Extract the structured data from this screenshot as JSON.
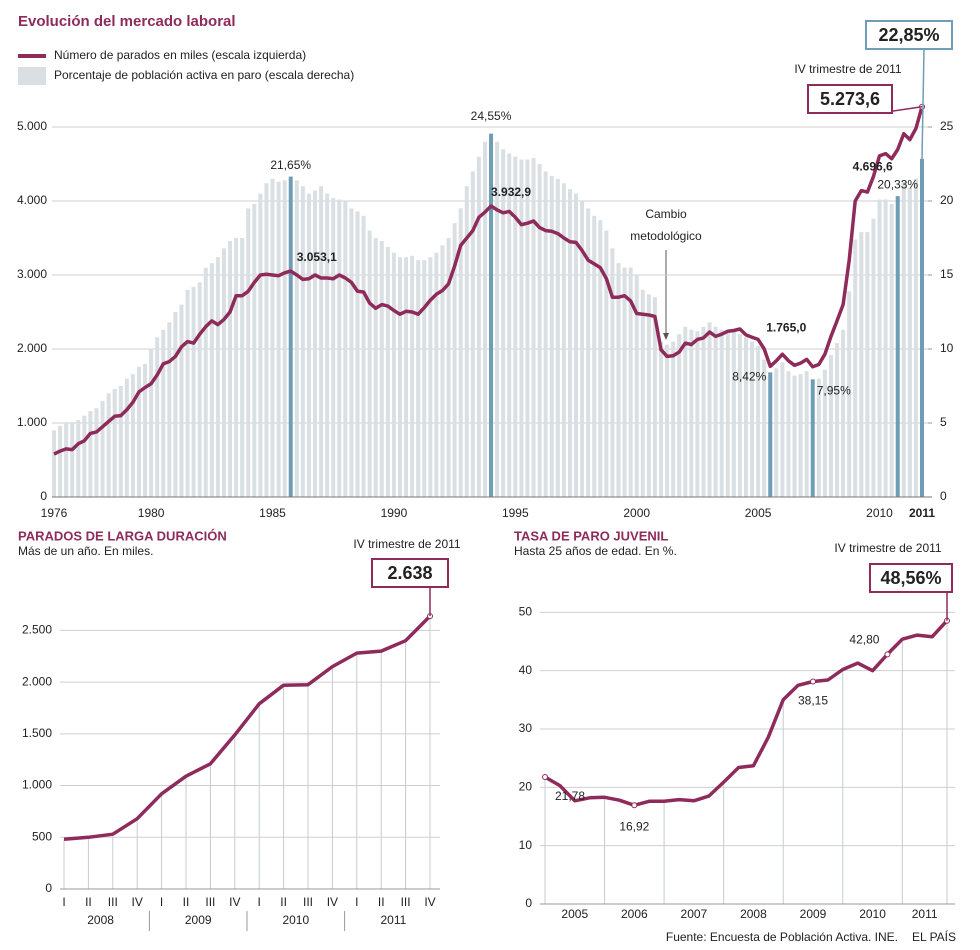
{
  "chart_data": [
    {
      "type": "bar_line",
      "title": "Evolución del mercado laboral",
      "annotation": "IV trimestre de 2011",
      "note_lines": [
        "Cambio",
        "metodológico"
      ],
      "legend": "top-left",
      "grid": true,
      "categories": [
        "1976",
        null,
        null,
        null,
        null,
        null,
        null,
        null,
        null,
        null,
        null,
        null,
        null,
        null,
        null,
        null,
        "1980",
        null,
        null,
        null,
        null,
        null,
        null,
        null,
        null,
        null,
        null,
        null,
        null,
        null,
        null,
        null,
        null,
        null,
        null,
        null,
        "1985",
        null,
        null,
        null,
        null,
        null,
        null,
        null,
        null,
        null,
        null,
        null,
        null,
        null,
        null,
        null,
        null,
        null,
        null,
        null,
        "1990",
        null,
        null,
        null,
        null,
        null,
        null,
        null,
        null,
        null,
        null,
        null,
        null,
        null,
        null,
        null,
        null,
        null,
        null,
        null,
        "1995",
        null,
        null,
        null,
        null,
        null,
        null,
        null,
        null,
        null,
        null,
        null,
        null,
        null,
        null,
        null,
        null,
        null,
        null,
        null,
        "2000",
        null,
        null,
        null,
        null,
        null,
        null,
        null,
        null,
        null,
        null,
        null,
        null,
        null,
        null,
        null,
        null,
        null,
        null,
        null,
        "2005",
        null,
        null,
        null,
        null,
        null,
        null,
        null,
        null,
        null,
        null,
        null,
        null,
        null,
        null,
        null,
        null,
        null,
        null,
        null,
        "2010",
        null,
        null,
        null,
        null,
        null,
        null,
        "2011"
      ],
      "series": [
        {
          "name": "Número de parados en miles (escala izquierda)",
          "type": "line",
          "color": "#8e2b5a",
          "values": [
            580,
            620,
            650,
            640,
            720,
            760,
            860,
            880,
            950,
            1020,
            1090,
            1100,
            1180,
            1280,
            1420,
            1480,
            1530,
            1650,
            1800,
            1830,
            1900,
            2030,
            2100,
            2080,
            2200,
            2300,
            2380,
            2330,
            2400,
            2500,
            2720,
            2720,
            2780,
            2900,
            3000,
            3010,
            3000,
            2990,
            3030,
            3053.1,
            3000,
            2940,
            2950,
            3000,
            2960,
            2960,
            2950,
            3000,
            2960,
            2900,
            2780,
            2770,
            2620,
            2550,
            2600,
            2580,
            2520,
            2470,
            2510,
            2500,
            2470,
            2560,
            2660,
            2740,
            2790,
            2880,
            3120,
            3400,
            3500,
            3600,
            3780,
            3850,
            3932.9,
            3880,
            3840,
            3860,
            3780,
            3680,
            3700,
            3730,
            3640,
            3600,
            3590,
            3560,
            3500,
            3450,
            3440,
            3330,
            3200,
            3150,
            3100,
            2950,
            2700,
            2700,
            2720,
            2650,
            2480,
            2470,
            2460,
            2440,
            1990,
            1900,
            1910,
            1960,
            2080,
            2060,
            2130,
            2150,
            2230,
            2170,
            2200,
            2240,
            2250,
            2270,
            2190,
            2160,
            2130,
            2000,
            1765,
            1840,
            1930,
            1840,
            1780,
            1810,
            1860,
            1760,
            1790,
            1930,
            2170,
            2380,
            2600,
            3200,
            4000,
            4140,
            4120,
            4330,
            4610,
            4640,
            4570,
            4696.6,
            4910,
            4830,
            4980,
            5273.6
          ],
          "value_labels": [
            null,
            null,
            null,
            null,
            null,
            null,
            null,
            null,
            null,
            null,
            null,
            null,
            null,
            null,
            null,
            null,
            null,
            null,
            null,
            null,
            null,
            null,
            null,
            null,
            null,
            null,
            null,
            null,
            null,
            null,
            null,
            null,
            null,
            null,
            null,
            null,
            null,
            null,
            null,
            "3.053,1",
            null,
            null,
            null,
            null,
            null,
            null,
            null,
            null,
            null,
            null,
            null,
            null,
            null,
            null,
            null,
            null,
            null,
            null,
            null,
            null,
            null,
            null,
            null,
            null,
            null,
            null,
            null,
            null,
            null,
            null,
            null,
            null,
            "3.932,9",
            null,
            null,
            null,
            null,
            null,
            null,
            null,
            null,
            null,
            null,
            null,
            null,
            null,
            null,
            null,
            null,
            null,
            null,
            null,
            null,
            null,
            null,
            null,
            null,
            null,
            null,
            null,
            null,
            null,
            null,
            null,
            null,
            null,
            null,
            null,
            null,
            null,
            null,
            null,
            null,
            null,
            null,
            null,
            null,
            null,
            "1.765,0",
            null,
            null,
            null,
            null,
            null,
            null,
            null,
            null,
            null,
            null,
            null,
            null,
            null,
            null,
            null,
            null,
            null,
            null,
            null,
            null,
            "4.696,6",
            null,
            null,
            null,
            "5.273,6"
          ]
        },
        {
          "name": "Porcentaje de población activa en paro (escala derecha)",
          "type": "bar",
          "axis": "y2",
          "color": "#d9dfe3",
          "highlight_color": "#6f9db5",
          "values": [
            4.5,
            4.8,
            5.0,
            5.0,
            5.2,
            5.5,
            5.8,
            6.0,
            6.5,
            7.0,
            7.3,
            7.5,
            8.0,
            8.3,
            8.8,
            9.0,
            10.0,
            10.8,
            11.3,
            11.8,
            12.5,
            13.0,
            14.0,
            14.2,
            14.5,
            15.5,
            15.8,
            16.2,
            16.8,
            17.3,
            17.5,
            17.5,
            19.5,
            19.8,
            20.5,
            21.2,
            21.5,
            21.3,
            21.4,
            21.65,
            21.4,
            21.0,
            20.5,
            20.7,
            21.0,
            20.5,
            20.2,
            20.1,
            20.0,
            19.5,
            19.3,
            19.0,
            18.0,
            17.5,
            17.3,
            16.9,
            16.5,
            16.2,
            16.2,
            16.3,
            16.0,
            16.0,
            16.2,
            16.5,
            17.0,
            17.5,
            18.5,
            19.5,
            21.0,
            22.0,
            23.0,
            24.0,
            24.55,
            24.0,
            23.5,
            23.2,
            23.0,
            22.8,
            22.8,
            22.9,
            22.5,
            22.0,
            21.7,
            21.5,
            21.2,
            20.8,
            20.5,
            20.0,
            19.5,
            19.0,
            18.7,
            18.0,
            16.8,
            15.8,
            15.5,
            15.5,
            15.0,
            14.0,
            13.7,
            13.5,
            10.5,
            10.3,
            10.5,
            11.0,
            11.5,
            11.3,
            11.2,
            11.5,
            11.8,
            11.5,
            11.3,
            11.2,
            11.2,
            11.0,
            10.8,
            10.5,
            10.2,
            9.3,
            8.42,
            8.7,
            9.1,
            8.5,
            8.2,
            8.3,
            8.5,
            7.95,
            8.0,
            8.6,
            9.6,
            10.4,
            11.3,
            13.9,
            17.4,
            17.9,
            17.9,
            18.8,
            20.1,
            20.1,
            19.8,
            20.33,
            21.3,
            20.9,
            21.5,
            22.85
          ],
          "value_labels": [
            null,
            null,
            null,
            null,
            null,
            null,
            null,
            null,
            null,
            null,
            null,
            null,
            null,
            null,
            null,
            null,
            null,
            null,
            null,
            null,
            null,
            null,
            null,
            null,
            null,
            null,
            null,
            null,
            null,
            null,
            null,
            null,
            null,
            null,
            null,
            null,
            null,
            null,
            null,
            "21,65%",
            null,
            null,
            null,
            null,
            null,
            null,
            null,
            null,
            null,
            null,
            null,
            null,
            null,
            null,
            null,
            null,
            null,
            null,
            null,
            null,
            null,
            null,
            null,
            null,
            null,
            null,
            null,
            null,
            null,
            null,
            null,
            null,
            "24,55%",
            null,
            null,
            null,
            null,
            null,
            null,
            null,
            null,
            null,
            null,
            null,
            null,
            null,
            null,
            null,
            null,
            null,
            null,
            null,
            null,
            null,
            null,
            null,
            null,
            null,
            null,
            null,
            null,
            null,
            null,
            null,
            null,
            null,
            null,
            null,
            null,
            null,
            null,
            null,
            null,
            null,
            null,
            null,
            null,
            null,
            "8,42%",
            null,
            null,
            null,
            null,
            null,
            null,
            "7,95%",
            null,
            null,
            null,
            null,
            null,
            null,
            null,
            null,
            null,
            null,
            null,
            null,
            null,
            "20,33%",
            null,
            null,
            null,
            "22,85%"
          ]
        }
      ],
      "ylim": [
        0,
        5000
      ],
      "yticks": [
        0,
        {
          "value": 1000,
          "label": "1.000"
        },
        {
          "value": 2000,
          "label": "2.000"
        },
        {
          "value": 3000,
          "label": "3.000"
        },
        {
          "value": 4000,
          "label": "4.000"
        },
        {
          "value": 5000,
          "label": "5.000"
        }
      ],
      "y2lim": [
        0,
        25
      ],
      "y2ticks": [
        0,
        5,
        10,
        15,
        20,
        25
      ]
    },
    {
      "type": "line",
      "title": "PARADOS DE LARGA DURACIÓN",
      "subtitle": "Más de un año. En miles.",
      "annotation": "IV trimestre de 2011",
      "grid": true,
      "categories": [
        "I",
        "II",
        "III",
        "IV",
        "I",
        "II",
        "III",
        "IV",
        "I",
        "II",
        "III",
        "IV",
        "I",
        "II",
        "III",
        "IV"
      ],
      "groups": [
        "2008",
        "2009",
        "2010",
        "2011"
      ],
      "series": [
        {
          "color": "#8e2b5a",
          "values": [
            480,
            500,
            530,
            680,
            920,
            1090,
            1210,
            1490,
            1790,
            1970,
            1975,
            2150,
            2280,
            2300,
            2400,
            2638
          ],
          "value_labels": [
            null,
            null,
            null,
            null,
            null,
            null,
            null,
            null,
            null,
            null,
            null,
            null,
            null,
            null,
            null,
            "2.638"
          ]
        }
      ],
      "ylim": [
        0,
        2900
      ],
      "yticks": [
        0,
        500,
        {
          "value": 1000,
          "label": "1.000"
        },
        {
          "value": 1500,
          "label": "1.500"
        },
        {
          "value": 2000,
          "label": "2.000"
        },
        {
          "value": 2500,
          "label": "2.500"
        }
      ]
    },
    {
      "type": "line",
      "title": "TASA DE PARO JUVENIL",
      "subtitle": "Hasta 25 años de edad. En %.",
      "annotation": "IV trimestre de 2011",
      "grid": true,
      "categories": [
        null,
        null,
        null,
        null,
        null,
        null,
        null,
        null,
        null,
        null,
        null,
        null,
        null,
        null,
        null,
        null,
        null,
        null,
        null,
        null,
        null,
        null,
        null,
        null,
        null,
        null,
        null,
        null
      ],
      "groups": [
        "2005",
        "2006",
        "2007",
        "2008",
        "2009",
        "2010",
        "2011"
      ],
      "series": [
        {
          "color": "#8e2b5a",
          "values": [
            21.78,
            20.3,
            17.7,
            18.2,
            18.3,
            17.8,
            16.92,
            17.6,
            17.6,
            17.9,
            17.7,
            18.5,
            20.9,
            23.4,
            23.7,
            28.6,
            35.0,
            37.5,
            38.15,
            38.4,
            40.2,
            41.3,
            40.0,
            42.8,
            45.4,
            46.1,
            45.8,
            48.56
          ],
          "value_labels": [
            "21,78",
            null,
            null,
            null,
            null,
            null,
            "16,92",
            null,
            null,
            null,
            null,
            null,
            null,
            null,
            null,
            null,
            null,
            null,
            "38,15",
            null,
            null,
            null,
            null,
            "42,80",
            null,
            null,
            null,
            "48,56%"
          ]
        }
      ],
      "ylim": [
        0,
        54
      ],
      "yticks": [
        0,
        10,
        20,
        30,
        40,
        50
      ]
    }
  ],
  "source": "Fuente: Encuesta de Población Activa. INE.",
  "brand": "EL PAÍS"
}
